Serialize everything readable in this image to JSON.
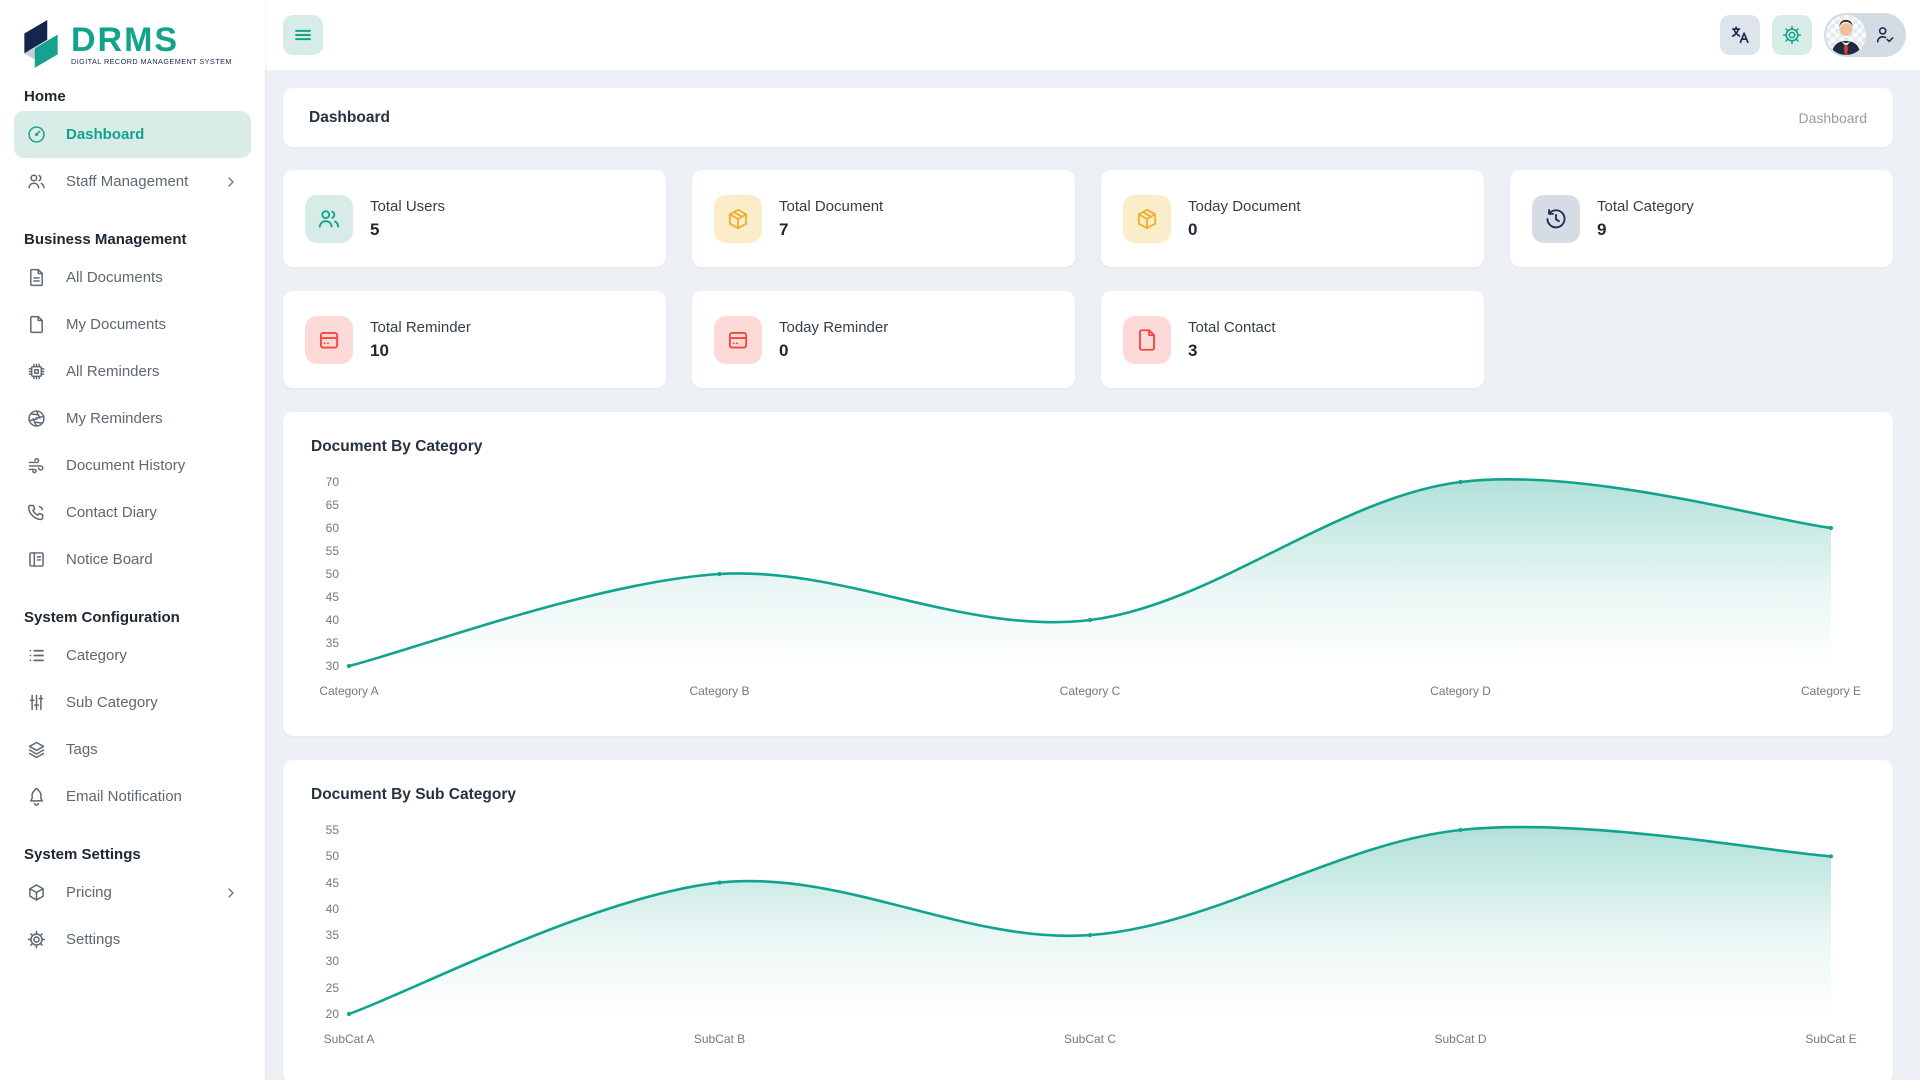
{
  "brand": {
    "name": "DRMS",
    "tagline": "DIGITAL RECORD MANAGEMENT SYSTEM"
  },
  "page": {
    "title": "Dashboard",
    "breadcrumb": "Dashboard"
  },
  "topbar": {
    "menu_icon": "hamburger-icon",
    "translate_icon": "translate-icon",
    "settings_icon": "gear-icon",
    "avatar_icon": "user-avatar",
    "profile_icon": "user-check-icon"
  },
  "sidebar": {
    "sections": [
      {
        "title": "Home",
        "items": [
          {
            "label": "Dashboard",
            "icon": "gauge-icon",
            "active": true
          },
          {
            "label": "Staff Management",
            "icon": "users-icon",
            "chevron": true
          }
        ]
      },
      {
        "title": "Business Management",
        "items": [
          {
            "label": "All Documents",
            "icon": "file-text-icon"
          },
          {
            "label": "My Documents",
            "icon": "file-icon"
          },
          {
            "label": "All Reminders",
            "icon": "chip-icon"
          },
          {
            "label": "My Reminders",
            "icon": "aperture-icon"
          },
          {
            "label": "Document History",
            "icon": "wind-icon"
          },
          {
            "label": "Contact Diary",
            "icon": "phone-icon"
          },
          {
            "label": "Notice Board",
            "icon": "notice-board-icon"
          }
        ]
      },
      {
        "title": "System Configuration",
        "items": [
          {
            "label": "Category",
            "icon": "list-icon"
          },
          {
            "label": "Sub Category",
            "icon": "sliders-icon"
          },
          {
            "label": "Tags",
            "icon": "layers-icon"
          },
          {
            "label": "Email Notification",
            "icon": "bell-icon"
          }
        ]
      },
      {
        "title": "System Settings",
        "items": [
          {
            "label": "Pricing",
            "icon": "box-icon",
            "chevron": true
          },
          {
            "label": "Settings",
            "icon": "gear-icon"
          }
        ]
      }
    ]
  },
  "stat_rows": [
    [
      {
        "label": "Total Users",
        "value": "5",
        "icon": "users-icon",
        "theme": "teal"
      },
      {
        "label": "Total Document",
        "value": "7",
        "icon": "package-icon",
        "theme": "amber"
      },
      {
        "label": "Today Document",
        "value": "0",
        "icon": "package-icon",
        "theme": "amber"
      },
      {
        "label": "Total Category",
        "value": "9",
        "icon": "history-icon",
        "theme": "gray"
      }
    ],
    [
      {
        "label": "Total Reminder",
        "value": "10",
        "icon": "card-icon",
        "theme": "red"
      },
      {
        "label": "Today Reminder",
        "value": "0",
        "icon": "card-icon",
        "theme": "red"
      },
      {
        "label": "Total Contact",
        "value": "3",
        "icon": "contact-file-icon",
        "theme": "red"
      }
    ]
  ],
  "chart_data": [
    {
      "type": "area",
      "title": "Document By Category",
      "categories": [
        "Category A",
        "Category B",
        "Category C",
        "Category D",
        "Category E"
      ],
      "values": [
        30,
        50,
        40,
        70,
        60
      ],
      "ylim": [
        30,
        70
      ],
      "yticks": [
        70,
        65,
        60,
        55,
        50,
        45,
        40,
        35,
        30
      ],
      "xlabel": "",
      "ylabel": "",
      "grid": false,
      "legend": "none",
      "line_color": "#12a38c",
      "fill": "teal-gradient-fade"
    },
    {
      "type": "area",
      "title": "Document By Sub Category",
      "categories": [
        "SubCat A",
        "SubCat B",
        "SubCat C",
        "SubCat D",
        "SubCat E"
      ],
      "values": [
        20,
        45,
        35,
        55,
        50
      ],
      "ylim": [
        20,
        55
      ],
      "yticks": [
        55,
        50,
        45,
        40,
        35,
        30,
        25,
        20
      ],
      "xlabel": "",
      "ylabel": "",
      "grid": false,
      "legend": "none",
      "line_color": "#12a38c",
      "fill": "teal-gradient-fade"
    }
  ],
  "colors": {
    "accent": "#12a38c",
    "accent_soft": "#d9ece7",
    "navy": "#1b2a4e",
    "amber": "#efaf2f",
    "amber_soft": "#fcedca",
    "red": "#f2463e",
    "red_soft": "#fdd9d7",
    "gray_tile": "#d6dce3",
    "page_bg": "#edf1f5"
  }
}
